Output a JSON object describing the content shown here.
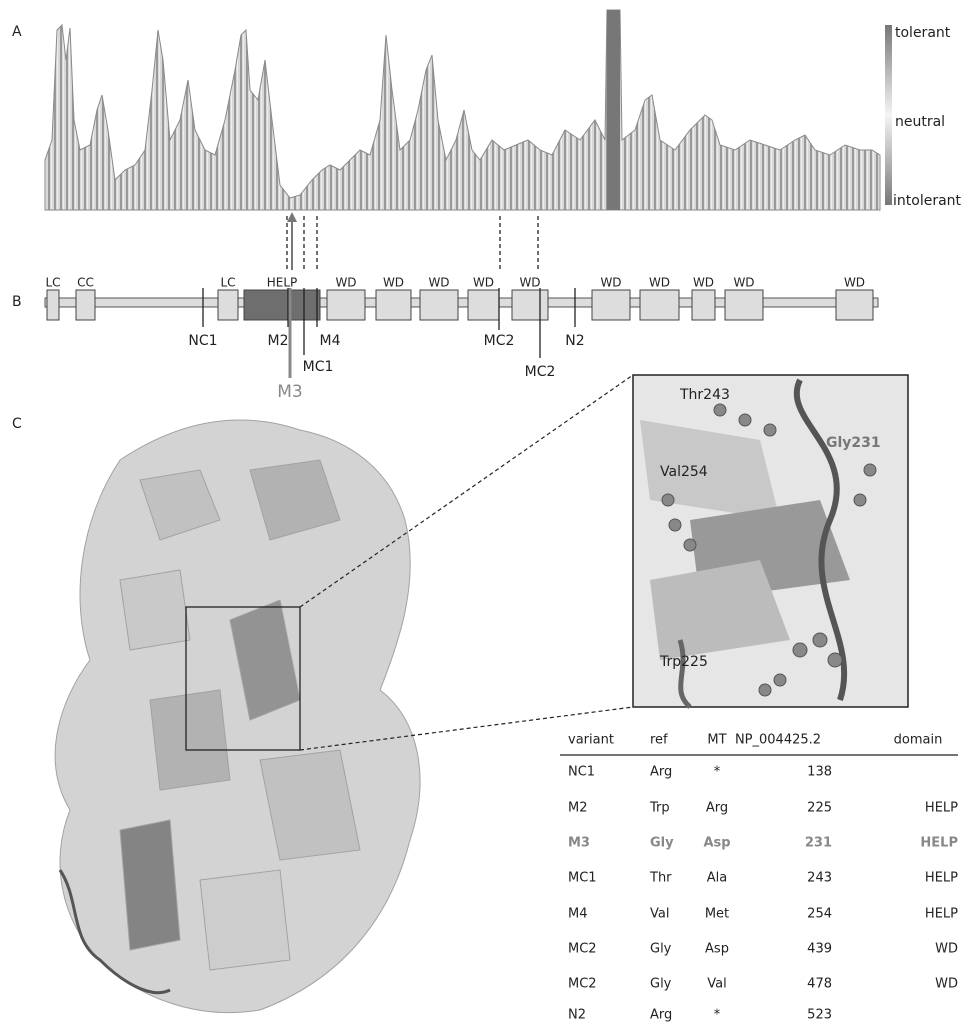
{
  "panels": {
    "a": "A",
    "b": "B",
    "c": "C"
  },
  "legend": {
    "high": "tolerant",
    "mid": "neutral",
    "low": "intolerant"
  },
  "domains": [
    "LC",
    "CC",
    "LC",
    "HELP",
    "WD",
    "WD",
    "WD",
    "WD",
    "WD",
    "WD",
    "WD",
    "WD",
    "WD",
    "WD"
  ],
  "variant_markers": [
    "NC1",
    "M2",
    "M4",
    "MC1",
    "M3",
    "MC2",
    "MC2",
    "N2"
  ],
  "residues": [
    "Thr243",
    "Gly231",
    "Val254",
    "Trp225"
  ],
  "table": {
    "header": [
      "variant",
      "ref",
      "MT",
      "NP_004425.2",
      "domain"
    ],
    "rows": [
      [
        "NC1",
        "Arg",
        "*",
        "138"
      ],
      [
        "M2",
        "Trp",
        "Arg",
        "225",
        "HELP"
      ],
      [
        "M3",
        "Gly",
        "Asp",
        "231",
        "HELP"
      ],
      [
        "MC1",
        "Thr",
        "Ala",
        "243",
        "HELP"
      ],
      [
        "M4",
        "Val",
        "Met",
        "254",
        "HELP"
      ],
      [
        "MC2",
        "Gly",
        "Asp",
        "439",
        "WD"
      ],
      [
        "MC2",
        "Gly",
        "Val",
        "478",
        "WD"
      ],
      [
        "N2",
        "Arg",
        "*",
        "523"
      ]
    ]
  }
}
